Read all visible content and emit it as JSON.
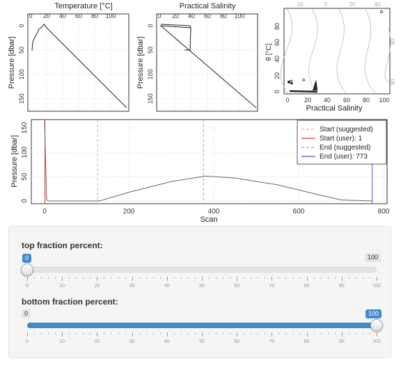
{
  "temperature_plot": {
    "title": "Temperature [°C]",
    "ylabel": "Pressure [dbar]",
    "x_ticks": [
      "0",
      "20",
      "40",
      "60",
      "80",
      "100"
    ],
    "y_ticks": [
      "0",
      "50",
      "100",
      "150"
    ]
  },
  "salinity_plot": {
    "title": "Practical Salinity",
    "ylabel": "Pressure [dbar]",
    "x_ticks": [
      "0",
      "20",
      "40",
      "60",
      "80",
      "100"
    ],
    "y_ticks": [
      "0",
      "50",
      "100",
      "150"
    ]
  },
  "ts_plot": {
    "xlabel": "Practical Salinity",
    "ylabel": "θ [°C]",
    "x_ticks": [
      "0",
      "20",
      "40",
      "60",
      "80",
      "100"
    ],
    "y_ticks": [
      "0",
      "20",
      "40",
      "60",
      "80"
    ],
    "density_labels_top": [
      "-20",
      "0",
      "20",
      "40"
    ],
    "density_labels_right": [
      "60",
      "80"
    ]
  },
  "scan_plot": {
    "xlabel": "Scan",
    "ylabel": "Pressure [dbar]",
    "x_ticks": [
      "0",
      "200",
      "400",
      "600",
      "800"
    ],
    "y_ticks": [
      "0",
      "50",
      "100",
      "150"
    ],
    "legend": [
      {
        "label": "Start (suggested)",
        "color": "#f4a3a3",
        "dashed": true
      },
      {
        "label": "Start (user): 1",
        "color": "#e03030",
        "dashed": false
      },
      {
        "label": "End (suggested)",
        "color": "#9aa0f0",
        "dashed": true
      },
      {
        "label": "End (user): 773",
        "color": "#5050e0",
        "dashed": false
      }
    ]
  },
  "chart_data": {
    "type": "line",
    "xlabel": "Scan",
    "ylabel": "Pressure [dbar]",
    "xlim": [
      0,
      800
    ],
    "ylim": [
      0,
      160
    ],
    "x": [
      0,
      5,
      10,
      70,
      130,
      200,
      300,
      380,
      450,
      550,
      650,
      700,
      773
    ],
    "y": [
      165,
      2,
      0,
      0,
      0,
      18,
      40,
      51,
      47,
      33,
      12,
      2,
      0
    ],
    "markers": {
      "start_suggested": 125,
      "start_user": 1,
      "end_suggested": 375,
      "end_user": 773
    }
  },
  "sliders": {
    "top": {
      "label": "top fraction percent:",
      "value": "0",
      "min": "0",
      "max": "100",
      "fraction": 0.0
    },
    "bottom": {
      "label": "bottom fraction percent:",
      "value": "100",
      "min": "0",
      "max": "100",
      "fraction": 1.0
    },
    "ticks": [
      "0",
      "10",
      "20",
      "30",
      "40",
      "50",
      "60",
      "70",
      "80",
      "90",
      "100"
    ]
  }
}
